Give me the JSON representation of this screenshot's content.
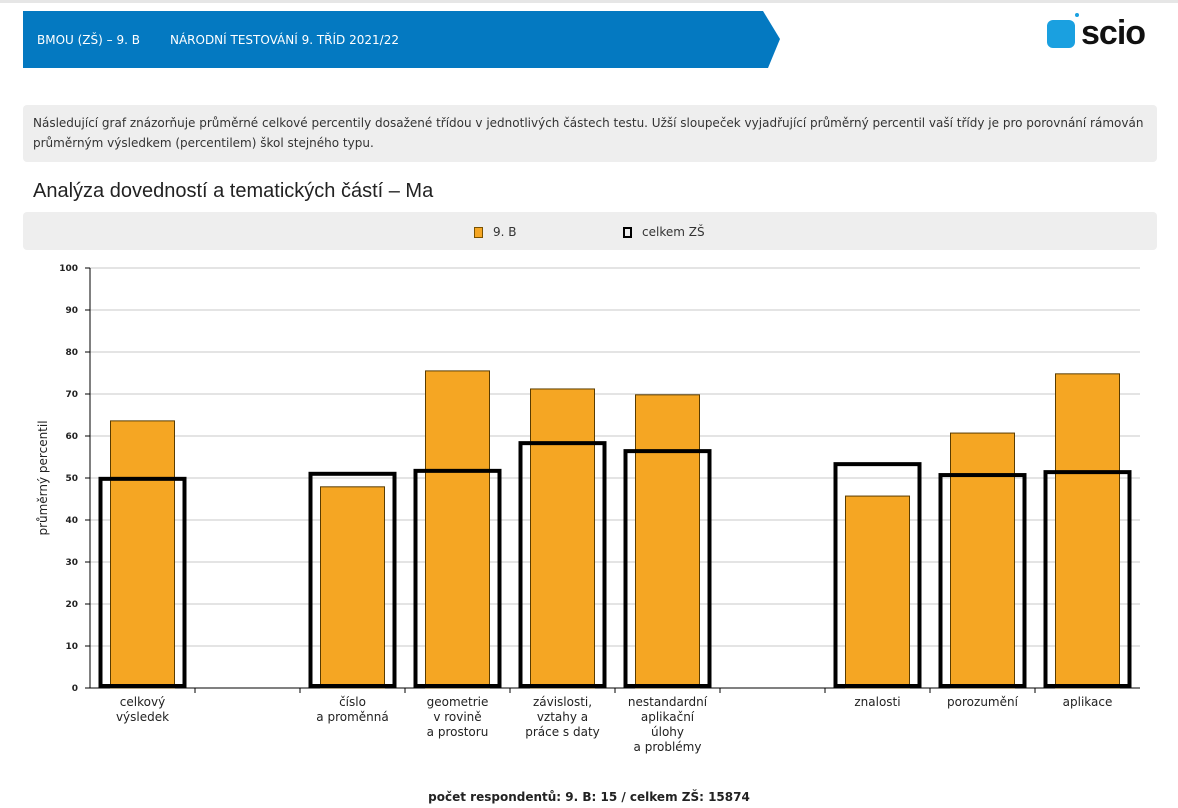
{
  "header": {
    "school": "BMOU (ZŠ) – 9. B",
    "test": "NÁRODNÍ TESTOVÁNÍ 9. TŘÍD 2021/22",
    "logo_text": "scio"
  },
  "info_text": "Následující graf znázorňuje průměrné celkové percentily dosažené třídou v jednotlivých částech testu. Užší sloupeček vyjadřující průměrný percentil vaší třídy je pro porovnání rámován průměrným výsledkem (percentilem) škol stejného typu.",
  "chart_data": {
    "type": "bar",
    "title": "Analýza dovedností a tematických částí – Ma",
    "ylabel": "průměrný percentil",
    "xlabel": "",
    "ylim": [
      0,
      100
    ],
    "yticks": [
      0,
      10,
      20,
      30,
      40,
      50,
      60,
      70,
      80,
      90,
      100
    ],
    "grid": true,
    "legend_position": "top-center",
    "categories": [
      [
        "celkový",
        "výsledek"
      ],
      [],
      [
        "číslo",
        "a proměnná"
      ],
      [
        "geometrie",
        "v rovině",
        "a prostoru"
      ],
      [
        "závislosti,",
        "vztahy a",
        "práce s daty"
      ],
      [
        "nestandardní",
        "aplikační",
        "úlohy",
        "a problémy"
      ],
      [],
      [
        "znalosti"
      ],
      [
        "porozumění"
      ],
      [
        "aplikace"
      ]
    ],
    "series": [
      {
        "name": "9. B",
        "color": "#f5a623",
        "values": [
          63.6,
          null,
          47.9,
          75.5,
          71.2,
          69.8,
          null,
          45.7,
          60.7,
          74.8
        ]
      },
      {
        "name": "celkem ZŠ",
        "color": "#000000",
        "values": [
          49.8,
          null,
          51,
          51.7,
          58.3,
          56.4,
          null,
          53.3,
          50.7,
          51.4
        ]
      }
    ]
  },
  "footer": "počet respondentů: 9. B: 15 / celkem ZŠ: 15874"
}
